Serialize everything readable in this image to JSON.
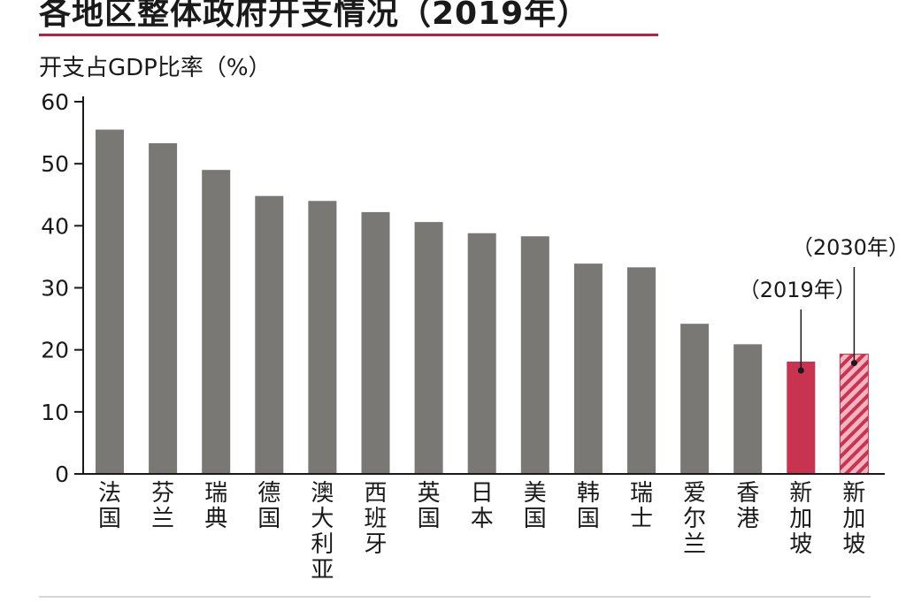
{
  "title": "各地区整体政府开支情况（2019年）",
  "ylabel": "开支占GDP比率（%）",
  "annotations": {
    "sg_2019": "（2019年）",
    "sg_2030": "（2030年）"
  },
  "colors": {
    "bar": "#7a7874",
    "highlight": "#c8334f",
    "highlight_hatch": "#f3b5c1",
    "axis": "#1a1a1a",
    "title_rule": "#b5223f"
  },
  "chart_data": {
    "type": "bar",
    "ylim": [
      0,
      60
    ],
    "yticks": [
      0,
      10,
      20,
      30,
      40,
      50,
      60
    ],
    "grid": false,
    "categories": [
      "法国",
      "芬兰",
      "瑞典",
      "德国",
      "澳大利亚",
      "西班牙",
      "英国",
      "日本",
      "美国",
      "韩国",
      "瑞士",
      "爱尔兰",
      "香港",
      "新加坡",
      "新加坡"
    ],
    "values": [
      55.5,
      53.3,
      49.0,
      44.8,
      44.0,
      42.2,
      40.6,
      38.8,
      38.3,
      33.9,
      33.3,
      24.2,
      20.9,
      18.1,
      19.3
    ],
    "styles": [
      "solid",
      "solid",
      "solid",
      "solid",
      "solid",
      "solid",
      "solid",
      "solid",
      "solid",
      "solid",
      "solid",
      "solid",
      "solid",
      "highlight",
      "highlight-hatched"
    ]
  }
}
